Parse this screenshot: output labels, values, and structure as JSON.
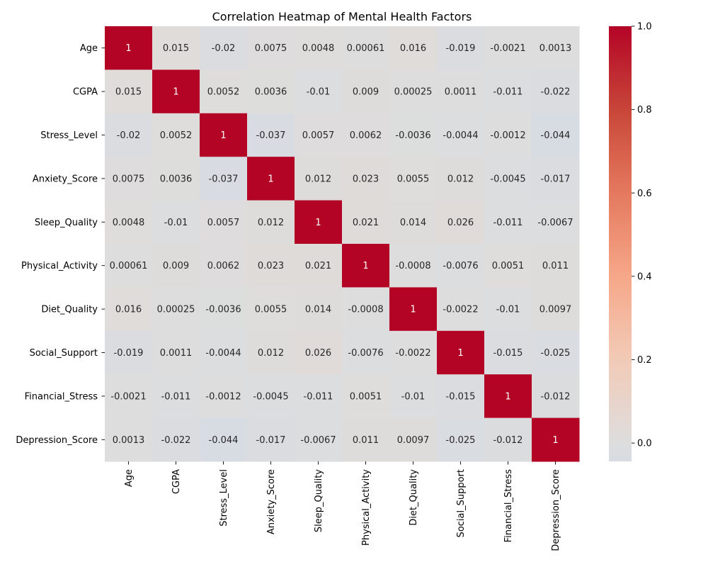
{
  "chart_data": {
    "type": "heatmap",
    "title": "Correlation Heatmap of Mental Health Factors",
    "variables": [
      "Age",
      "CGPA",
      "Stress_Level",
      "Anxiety_Score",
      "Sleep_Quality",
      "Physical_Activity",
      "Diet_Quality",
      "Social_Support",
      "Financial_Stress",
      "Depression_Score"
    ],
    "cell_labels": [
      [
        "1",
        "0.015",
        "-0.02",
        "0.0075",
        "0.0048",
        "0.00061",
        "0.016",
        "-0.019",
        "-0.0021",
        "0.0013"
      ],
      [
        "0.015",
        "1",
        "0.0052",
        "0.0036",
        "-0.01",
        "0.009",
        "0.00025",
        "0.0011",
        "-0.011",
        "-0.022"
      ],
      [
        "-0.02",
        "0.0052",
        "1",
        "-0.037",
        "0.0057",
        "0.0062",
        "-0.0036",
        "-0.0044",
        "-0.0012",
        "-0.044"
      ],
      [
        "0.0075",
        "0.0036",
        "-0.037",
        "1",
        "0.012",
        "0.023",
        "0.0055",
        "0.012",
        "-0.0045",
        "-0.017"
      ],
      [
        "0.0048",
        "-0.01",
        "0.0057",
        "0.012",
        "1",
        "0.021",
        "0.014",
        "0.026",
        "-0.011",
        "-0.0067"
      ],
      [
        "0.00061",
        "0.009",
        "0.0062",
        "0.023",
        "0.021",
        "1",
        "-0.0008",
        "-0.0076",
        "0.0051",
        "0.011"
      ],
      [
        "0.016",
        "0.00025",
        "-0.0036",
        "0.0055",
        "0.014",
        "-0.0008",
        "1",
        "-0.0022",
        "-0.01",
        "0.0097"
      ],
      [
        "-0.019",
        "0.0011",
        "-0.0044",
        "0.012",
        "0.026",
        "-0.0076",
        "-0.0022",
        "1",
        "-0.015",
        "-0.025"
      ],
      [
        "-0.0021",
        "-0.011",
        "-0.0012",
        "-0.0045",
        "-0.011",
        "0.0051",
        "-0.01",
        "-0.015",
        "1",
        "-0.012"
      ],
      [
        "0.0013",
        "-0.022",
        "-0.044",
        "-0.017",
        "-0.0067",
        "0.011",
        "0.0097",
        "-0.025",
        "-0.012",
        "1"
      ]
    ],
    "colormap": "coolwarm",
    "center": 0,
    "vmin": -0.044,
    "vmax": 1.0,
    "colorbar_ticks": [
      0.0,
      0.2,
      0.4,
      0.6,
      0.8,
      1.0
    ],
    "colorbar_tick_labels": [
      "0.0",
      "0.2",
      "0.4",
      "0.6",
      "0.8",
      "1.0"
    ],
    "annotation_colors": {
      "dark_cell": "#ffffff",
      "light_cell": "#262626"
    }
  }
}
